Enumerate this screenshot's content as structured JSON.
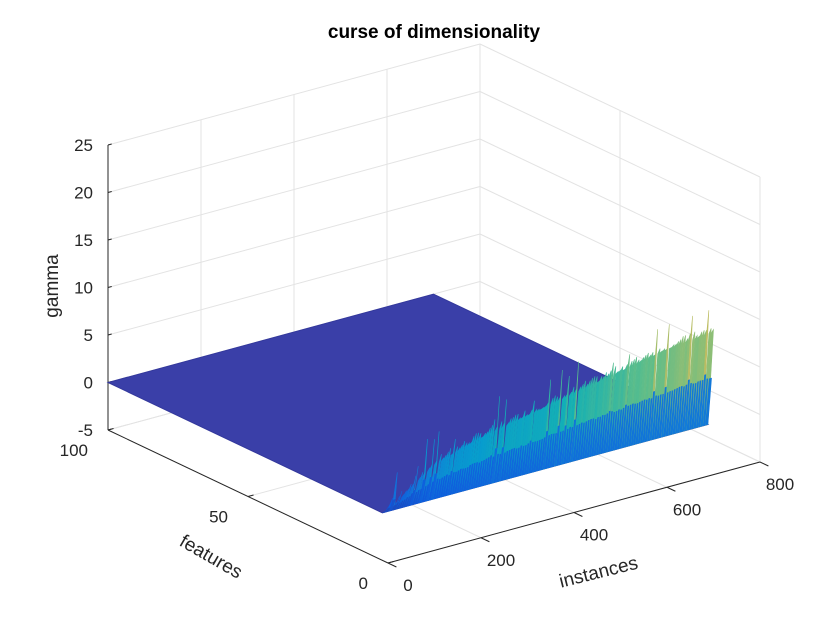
{
  "chart_data": {
    "type": "surface",
    "title": "curse of dimensionality",
    "xlabel": "instances",
    "ylabel": "features",
    "zlabel": "gamma",
    "xlim": [
      0,
      800
    ],
    "ylim": [
      0,
      100
    ],
    "zlim": [
      -5,
      25
    ],
    "x_ticks": [
      "0",
      "200",
      "400",
      "600",
      "800"
    ],
    "y_ticks": [
      "0",
      "50",
      "100"
    ],
    "z_ticks": [
      "-5",
      "0",
      "5",
      "10",
      "15",
      "20",
      "25"
    ],
    "grid": true,
    "colormap": "parula",
    "surface_x_range": [
      0,
      700
    ],
    "surface_y_range": [
      0,
      100
    ],
    "baseline_gamma": 0,
    "features_high_region": 0,
    "features_high_limit": 2,
    "edge_profile": [
      {
        "instances": 0,
        "gamma": 0.5
      },
      {
        "instances": 100,
        "gamma": 4
      },
      {
        "instances": 200,
        "gamma": 5.5
      },
      {
        "instances": 300,
        "gamma": 6.5
      },
      {
        "instances": 400,
        "gamma": 7.5
      },
      {
        "instances": 500,
        "gamma": 8.5
      },
      {
        "instances": 600,
        "gamma": 9.5
      },
      {
        "instances": 700,
        "gamma": 10
      }
    ],
    "peak_gamma": 13.5
  }
}
